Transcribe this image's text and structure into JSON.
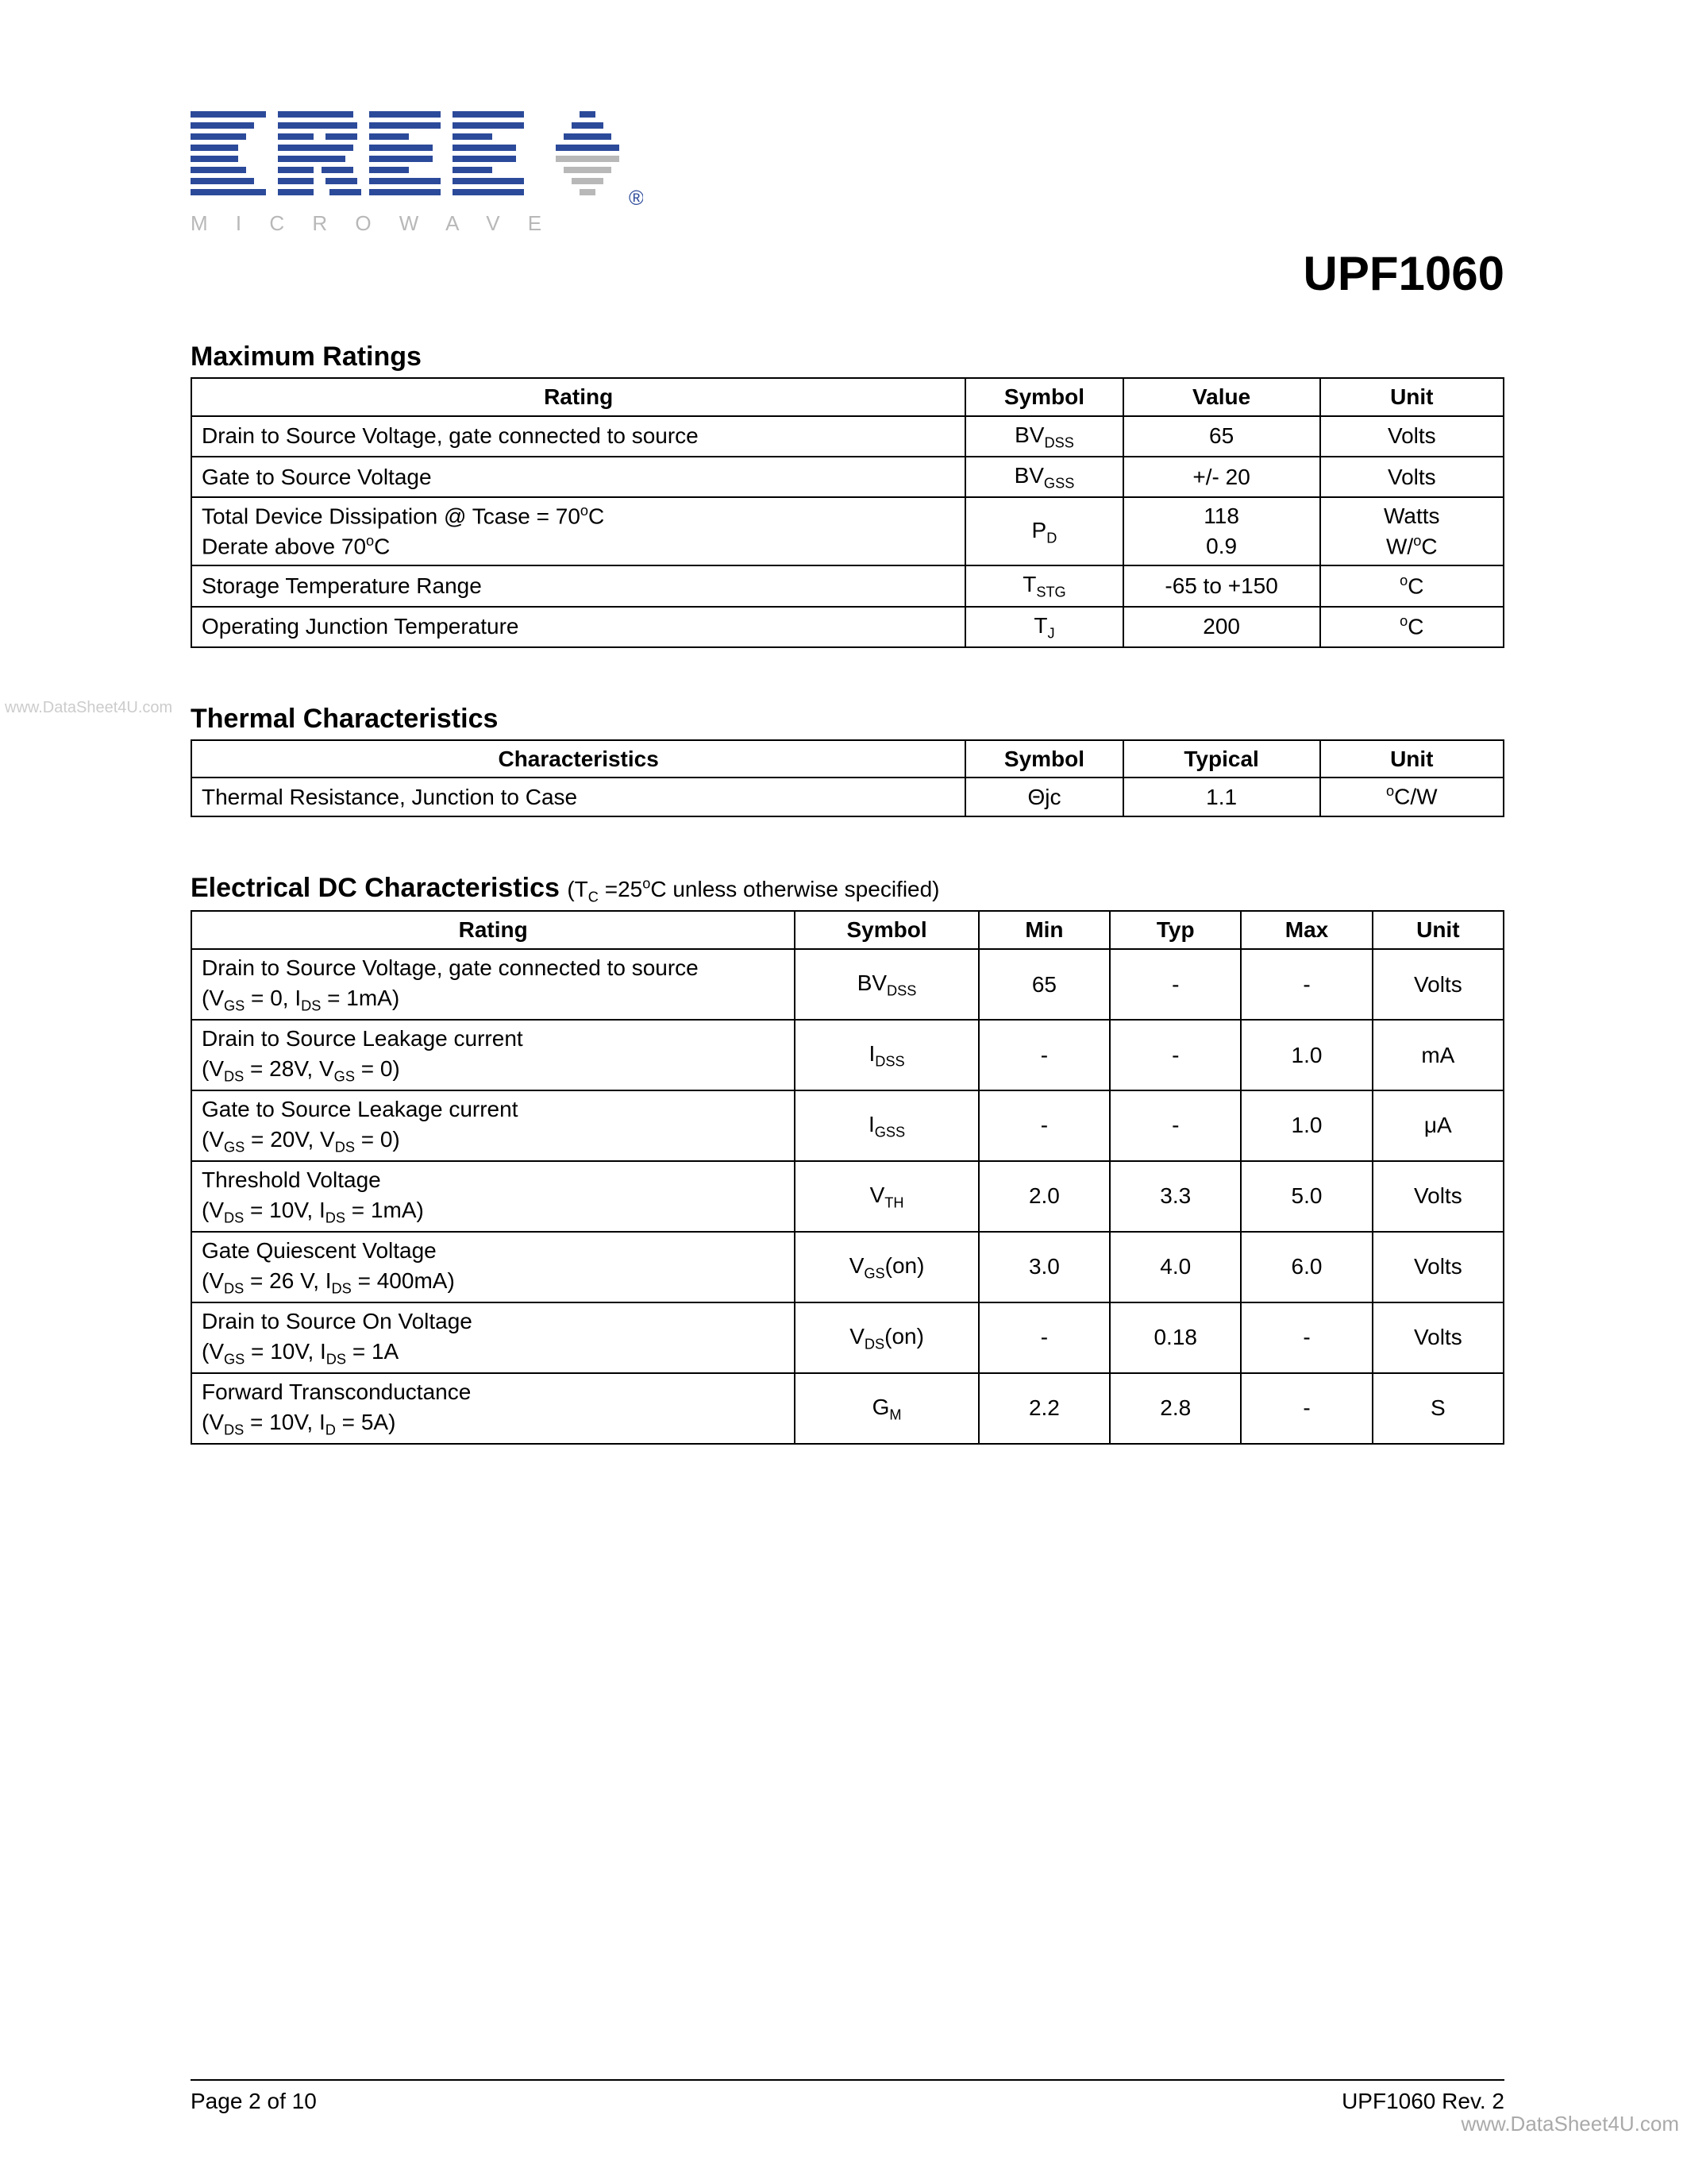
{
  "logo": {
    "tagline": "MICROWAVE",
    "registered": "®"
  },
  "part_number": "UPF1060",
  "watermark_left": "www.DataSheet4U.com",
  "watermark_right": "www.DataSheet4U.com",
  "max_ratings": {
    "title": "Maximum Ratings",
    "headers": {
      "rating": "Rating",
      "symbol": "Symbol",
      "value": "Value",
      "unit": "Unit"
    },
    "col_widths": {
      "rating": "59%",
      "symbol": "12%",
      "value": "15%",
      "unit": "14%"
    },
    "rows": [
      {
        "rating": "Drain to Source Voltage, gate connected to source",
        "symbol": "BV<sub>DSS</sub>",
        "value": "65",
        "unit": "Volts"
      },
      {
        "rating": "Gate to Source Voltage",
        "symbol": "BV<sub>GSS</sub>",
        "value": "+/- 20",
        "unit": "Volts"
      },
      {
        "rating": "Total Device Dissipation @ Tcase = 70<sup>o</sup>C<br>Derate above 70<sup>o</sup>C",
        "symbol": "P<sub>D</sub>",
        "value": "118<br>0.9",
        "unit": "Watts<br>W/<sup>o</sup>C"
      },
      {
        "rating": "Storage Temperature Range",
        "symbol": "T<sub>STG</sub>",
        "value": "-65 to +150",
        "unit": "<sup>o</sup>C"
      },
      {
        "rating": "Operating Junction Temperature",
        "symbol": "T<sub>J</sub>",
        "value": "200",
        "unit": "<sup>o</sup>C"
      }
    ]
  },
  "thermal": {
    "title": "Thermal Characteristics",
    "headers": {
      "char": "Characteristics",
      "symbol": "Symbol",
      "typical": "Typical",
      "unit": "Unit"
    },
    "col_widths": {
      "char": "59%",
      "symbol": "12%",
      "typical": "15%",
      "unit": "14%"
    },
    "rows": [
      {
        "char": "Thermal Resistance, Junction to Case",
        "symbol": "Θjc",
        "typical": "1.1",
        "unit": "<sup>o</sup>C/W"
      }
    ]
  },
  "electrical": {
    "title": "Electrical DC Characteristics",
    "subtitle": "(T<sub>C</sub> =25<sup>o</sup>C unless otherwise specified)",
    "headers": {
      "rating": "Rating",
      "symbol": "Symbol",
      "min": "Min",
      "typ": "Typ",
      "max": "Max",
      "unit": "Unit"
    },
    "col_widths": {
      "rating": "46%",
      "symbol": "14%",
      "min": "10%",
      "typ": "10%",
      "max": "10%",
      "unit": "10%"
    },
    "rows": [
      {
        "rating": "Drain to Source Voltage, gate connected to source<br>(V<sub>GS</sub> = 0, I<sub>DS</sub> = 1mA)",
        "symbol": "BV<sub>DSS</sub>",
        "min": "65",
        "typ": "-",
        "max": "-",
        "unit": "Volts"
      },
      {
        "rating": "Drain to Source Leakage current<br>(V<sub>DS</sub> = 28V, V<sub>GS</sub> = 0)",
        "symbol": "I<sub>DSS</sub>",
        "min": "-",
        "typ": "-",
        "max": "1.0",
        "unit": "mA"
      },
      {
        "rating": "Gate to Source Leakage current<br>(V<sub>GS</sub> = 20V, V<sub>DS</sub> = 0)",
        "symbol": "I<sub>GSS</sub>",
        "min": "-",
        "typ": "-",
        "max": "1.0",
        "unit": "μA"
      },
      {
        "rating": "Threshold Voltage<br>(V<sub>DS</sub> = 10V, I<sub>DS</sub> = 1mA)",
        "symbol": "V<sub>TH</sub>",
        "min": "2.0",
        "typ": "3.3",
        "max": "5.0",
        "unit": "Volts"
      },
      {
        "rating": "Gate Quiescent Voltage<br>(V<sub>DS</sub> = 26 V, I<sub>DS</sub> = 400mA)",
        "symbol": "V<sub>GS</sub>(on)",
        "min": "3.0",
        "typ": "4.0",
        "max": "6.0",
        "unit": "Volts"
      },
      {
        "rating": "Drain to Source On Voltage<br>(V<sub>GS</sub> = 10V,  I<sub>DS</sub> = 1A",
        "symbol": "V<sub>DS</sub>(on)",
        "min": "-",
        "typ": "0.18",
        "max": "-",
        "unit": "Volts"
      },
      {
        "rating": "Forward Transconductance<br>(V<sub>DS</sub> = 10V, I<sub>D</sub> = 5A)",
        "symbol": "G<sub>M</sub>",
        "min": "2.2",
        "typ": "2.8",
        "max": "-",
        "unit": "S"
      }
    ]
  },
  "footer": {
    "left": "Page 2 of 10",
    "right": "UPF1060 Rev. 2"
  }
}
